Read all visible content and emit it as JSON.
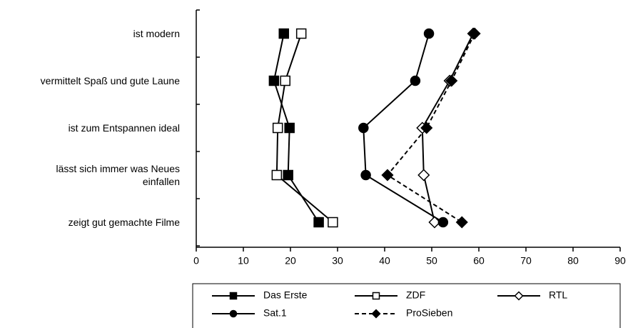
{
  "chart_data": {
    "type": "line",
    "orientation": "horizontal",
    "categories": [
      "ist modern",
      "vermittelt Spaß und gute Laune",
      "ist zum Entspannen ideal",
      "lässt sich immer was Neues\neinfallen",
      "zeigt gut gemachte Filme"
    ],
    "series": [
      {
        "name": "Das Erste",
        "color": "#000000",
        "marker": "square",
        "filled": true,
        "line_style": "solid",
        "values": [
          18.6,
          16.5,
          19.8,
          19.5,
          26
        ]
      },
      {
        "name": "ZDF",
        "color": "#000000",
        "marker": "square",
        "filled": false,
        "line_style": "solid",
        "values": [
          22.3,
          18.9,
          17.3,
          17.1,
          29
        ]
      },
      {
        "name": "RTL",
        "color": "#000000",
        "marker": "diamond",
        "filled": false,
        "line_style": "solid",
        "values": [
          58.8,
          53.8,
          48,
          48.3,
          50.6
        ]
      },
      {
        "name": "Sat.1",
        "color": "#000000",
        "marker": "circle",
        "filled": true,
        "line_style": "solid",
        "values": [
          49.4,
          46.5,
          35.5,
          36,
          52.4
        ]
      },
      {
        "name": "ProSieben",
        "color": "#000000",
        "marker": "diamond",
        "filled": true,
        "line_style": "dashed",
        "values": [
          59.1,
          54.2,
          48.9,
          40.6,
          56.4
        ]
      }
    ],
    "xlim": [
      0,
      90
    ],
    "xticks": [
      0,
      10,
      20,
      30,
      40,
      50,
      60,
      70,
      80,
      90
    ],
    "grid": false,
    "legend": "bottom"
  }
}
